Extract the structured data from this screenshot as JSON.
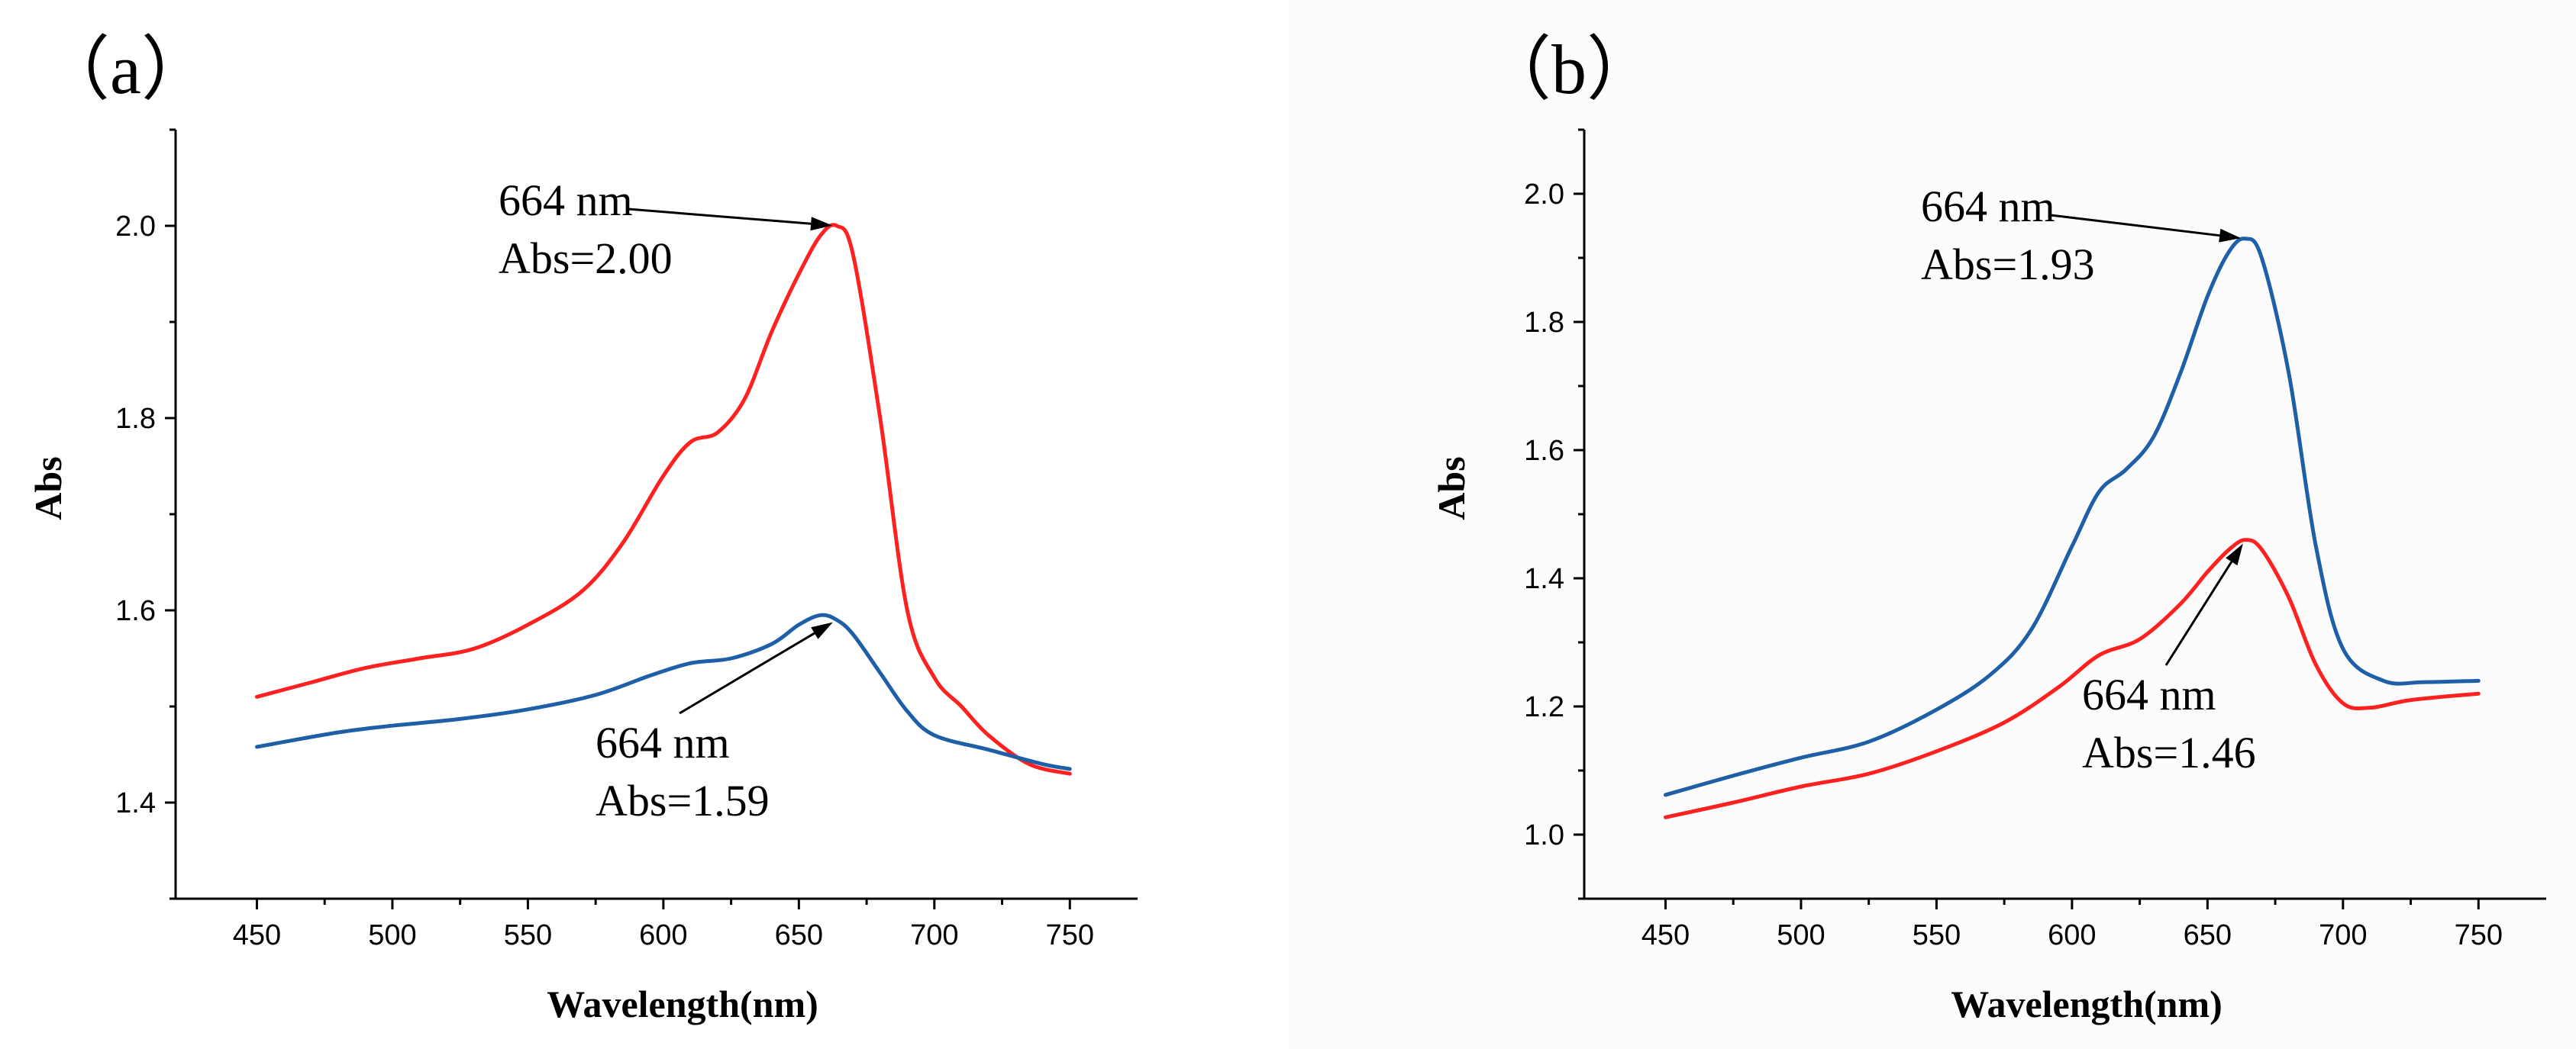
{
  "chart_data": [
    {
      "type": "line",
      "panel_label": "（a）",
      "xlabel": "Wavelength(nm)",
      "ylabel": "Abs",
      "xlim": [
        420,
        775
      ],
      "ylim": [
        1.3,
        2.1
      ],
      "xticks": [
        450,
        500,
        550,
        600,
        650,
        700,
        750
      ],
      "yticks": [
        1.4,
        1.6,
        1.8,
        2.0
      ],
      "ytick_labels": [
        "1.4",
        "1.6",
        "1.8",
        "2.0"
      ],
      "grid": false,
      "series": [
        {
          "name": "red",
          "color": "#ff2020",
          "x": [
            450,
            470,
            490,
            510,
            530,
            550,
            570,
            585,
            600,
            610,
            620,
            630,
            640,
            650,
            658,
            664,
            670,
            680,
            690,
            700,
            710,
            720,
            735,
            750
          ],
          "y": [
            1.51,
            1.525,
            1.54,
            1.55,
            1.56,
            1.585,
            1.62,
            1.67,
            1.74,
            1.775,
            1.785,
            1.82,
            1.89,
            1.95,
            1.99,
            2.0,
            1.97,
            1.8,
            1.6,
            1.53,
            1.5,
            1.47,
            1.44,
            1.43
          ]
        },
        {
          "name": "blue",
          "color": "#1f5fa8",
          "x": [
            450,
            480,
            500,
            525,
            550,
            575,
            595,
            610,
            625,
            640,
            650,
            658,
            664,
            670,
            680,
            690,
            700,
            720,
            740,
            750
          ],
          "y": [
            1.458,
            1.473,
            1.48,
            1.487,
            1.497,
            1.512,
            1.532,
            1.545,
            1.55,
            1.565,
            1.585,
            1.595,
            1.59,
            1.575,
            1.535,
            1.495,
            1.47,
            1.455,
            1.44,
            1.435
          ]
        }
      ],
      "annotations": [
        {
          "lines": [
            "664 nm",
            "Abs=2.00"
          ],
          "x": 664,
          "y": 2.0
        },
        {
          "lines": [
            "664 nm",
            "Abs=1.59"
          ],
          "x": 664,
          "y": 1.59
        }
      ]
    },
    {
      "type": "line",
      "panel_label": "（b）",
      "xlabel": "Wavelength(nm)",
      "ylabel": "Abs",
      "xlim": [
        420,
        775
      ],
      "ylim": [
        0.9,
        2.1
      ],
      "xticks": [
        450,
        500,
        550,
        600,
        650,
        700,
        750
      ],
      "yticks": [
        1.0,
        1.2,
        1.4,
        1.6,
        1.8,
        2.0
      ],
      "ytick_labels": [
        "1.0",
        "1.2",
        "1.4",
        "1.6",
        "1.8",
        "2.0"
      ],
      "grid": false,
      "series": [
        {
          "name": "blue",
          "color": "#1f5fa8",
          "x": [
            450,
            475,
            500,
            525,
            550,
            570,
            585,
            600,
            610,
            620,
            630,
            640,
            650,
            658,
            664,
            670,
            680,
            690,
            700,
            715,
            730,
            750
          ],
          "y": [
            1.062,
            1.092,
            1.12,
            1.145,
            1.195,
            1.25,
            1.32,
            1.45,
            1.535,
            1.57,
            1.62,
            1.72,
            1.84,
            1.91,
            1.93,
            1.9,
            1.72,
            1.45,
            1.29,
            1.24,
            1.238,
            1.24
          ]
        },
        {
          "name": "red",
          "color": "#ff2020",
          "x": [
            450,
            475,
            500,
            525,
            550,
            575,
            595,
            610,
            625,
            640,
            650,
            658,
            664,
            670,
            680,
            690,
            700,
            710,
            725,
            750
          ],
          "y": [
            1.027,
            1.05,
            1.075,
            1.095,
            1.13,
            1.175,
            1.23,
            1.28,
            1.305,
            1.36,
            1.41,
            1.445,
            1.46,
            1.445,
            1.37,
            1.265,
            1.205,
            1.198,
            1.21,
            1.22
          ]
        }
      ],
      "annotations": [
        {
          "lines": [
            "664 nm",
            "Abs=1.93"
          ],
          "x": 664,
          "y": 1.93
        },
        {
          "lines": [
            "664 nm",
            "Abs=1.46"
          ],
          "x": 664,
          "y": 1.46
        }
      ]
    }
  ]
}
